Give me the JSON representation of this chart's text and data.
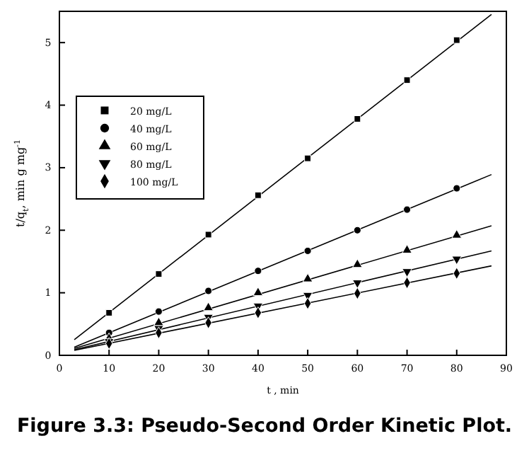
{
  "chart_data": {
    "type": "scatter",
    "xlabel": "t , min",
    "ylabel": "t/q$_{t}$, min g mg$^{-1}$",
    "annotations": [
      "Figure 3.3: Pseudo-Second Order Kinetic Plot."
    ],
    "xlim": [
      0,
      90
    ],
    "xticks": [
      0,
      10,
      20,
      30,
      40,
      50,
      60,
      70,
      80,
      90
    ],
    "ylim": [
      0,
      5.5
    ],
    "yticks": [
      0,
      1,
      2,
      3,
      4,
      5
    ],
    "grid": false,
    "legend": "top left",
    "series": [
      {
        "name": "20 mg/L",
        "color": "#000000",
        "marker": "square",
        "x": [
          10,
          20,
          30,
          40,
          50,
          60,
          70,
          80
        ],
        "values": [
          0.68,
          1.3,
          1.93,
          2.56,
          3.15,
          3.78,
          4.4,
          5.04
        ]
      },
      {
        "name": "40 mg/L",
        "color": "#000000",
        "marker": "circle",
        "x": [
          10,
          20,
          30,
          40,
          50,
          60,
          70,
          80
        ],
        "values": [
          0.36,
          0.7,
          1.03,
          1.35,
          1.67,
          2.0,
          2.33,
          2.67
        ]
      },
      {
        "name": "60 mg/L",
        "color": "#000000",
        "marker": "triangle",
        "x": [
          10,
          20,
          30,
          40,
          50,
          60,
          70,
          80
        ],
        "values": [
          0.27,
          0.52,
          0.76,
          1.0,
          1.22,
          1.45,
          1.68,
          1.92
        ]
      },
      {
        "name": "80 mg/L",
        "color": "#000000",
        "marker": "triangle-down",
        "x": [
          10,
          20,
          30,
          40,
          50,
          60,
          70,
          80
        ],
        "values": [
          0.22,
          0.43,
          0.61,
          0.79,
          0.96,
          1.16,
          1.34,
          1.54
        ]
      },
      {
        "name": "100 mg/L",
        "color": "#000000",
        "marker": "diamond",
        "x": [
          10,
          20,
          30,
          40,
          50,
          60,
          70,
          80
        ],
        "values": [
          0.19,
          0.36,
          0.52,
          0.68,
          0.83,
          0.99,
          1.16,
          1.31
        ]
      },
      {
        "type": "line",
        "color": "#000000",
        "marker": "none",
        "line_style": "solid",
        "x": [
          3,
          87
        ],
        "values": [
          0.25,
          5.45
        ]
      },
      {
        "type": "line",
        "color": "#000000",
        "marker": "none",
        "line_style": "solid",
        "x": [
          3,
          87
        ],
        "values": [
          0.13,
          2.89
        ]
      },
      {
        "type": "line",
        "color": "#000000",
        "marker": "none",
        "line_style": "solid",
        "x": [
          3,
          87
        ],
        "values": [
          0.11,
          2.07
        ]
      },
      {
        "type": "line",
        "color": "#000000",
        "marker": "none",
        "line_style": "solid",
        "x": [
          3,
          87
        ],
        "values": [
          0.09,
          1.67
        ]
      },
      {
        "type": "line",
        "color": "#000000",
        "marker": "none",
        "line_style": "solid",
        "x": [
          3,
          87
        ],
        "values": [
          0.08,
          1.43
        ]
      }
    ]
  }
}
